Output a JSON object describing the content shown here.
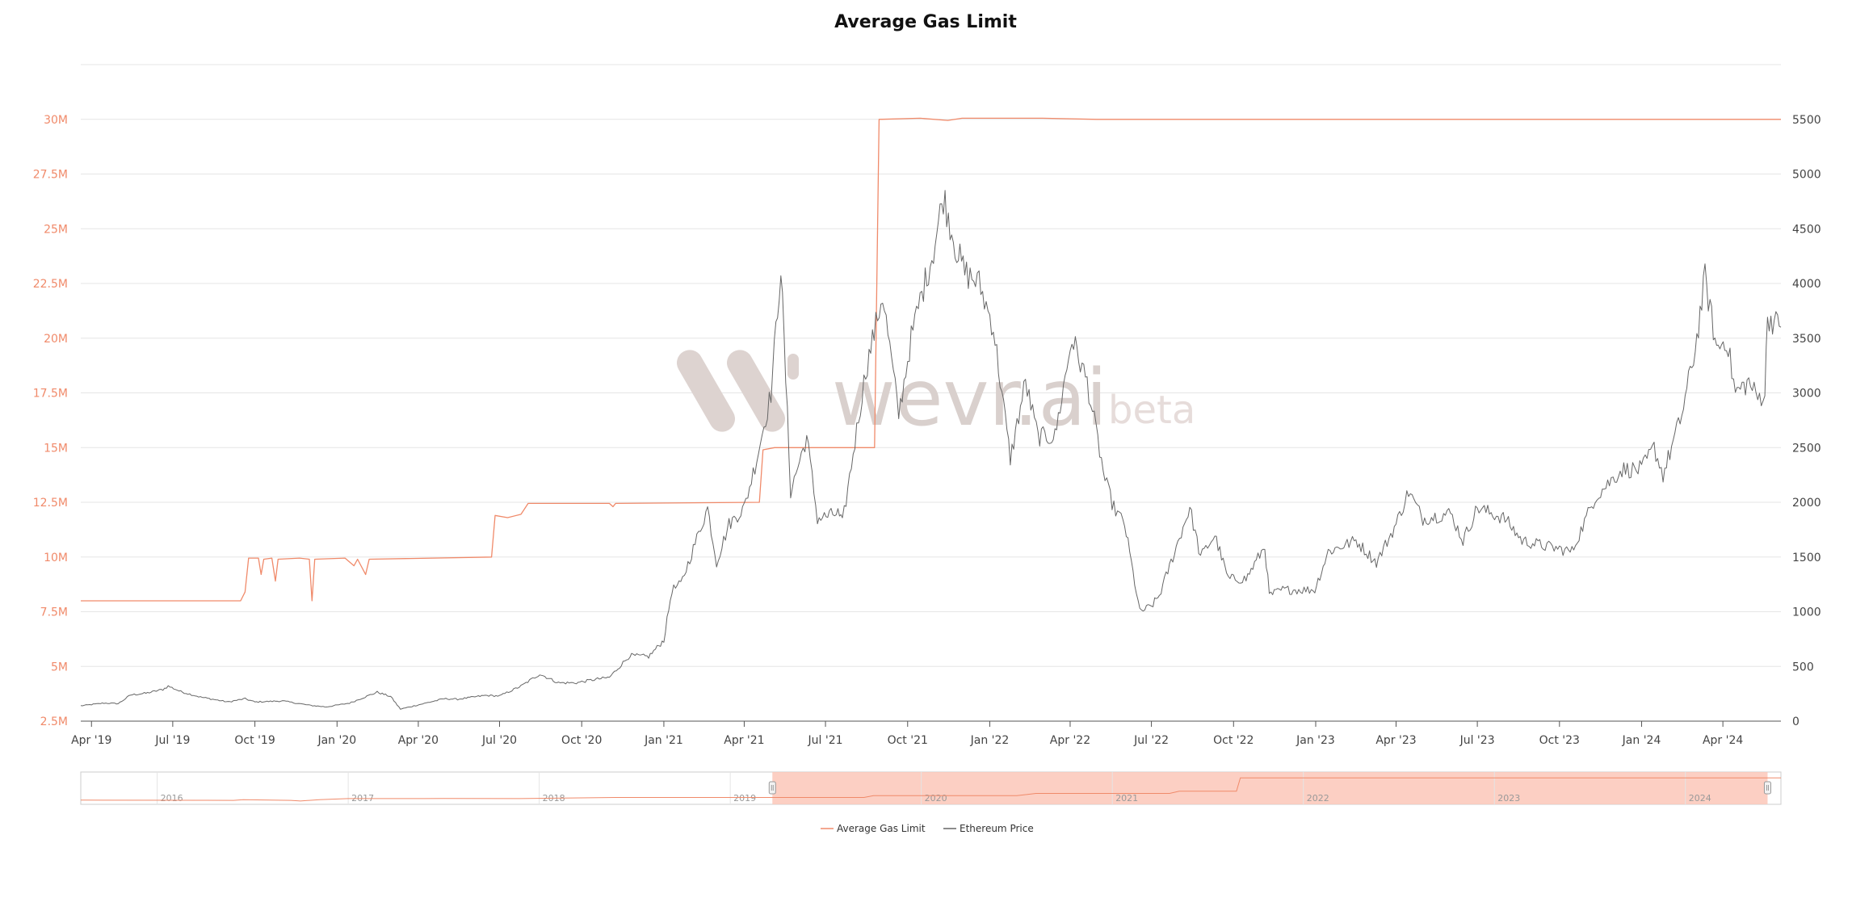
{
  "colors": {
    "gas": "#f08a6a",
    "price": "#666666",
    "grid": "#e6e6e6",
    "navigator_fill": "#fcc7b8",
    "watermark": "#d9d0cd"
  },
  "watermark": {
    "brand": "wevr.ai",
    "suffix": "beta",
    "icon": "wevr-logo-icon"
  },
  "legend": [
    {
      "label": "Average Gas Limit",
      "color": "#f08a6a"
    },
    {
      "label": "Ethereum Price",
      "color": "#666666"
    }
  ],
  "navigator": {
    "range_years": [
      2015.6,
      2024.5
    ],
    "selected_range": [
      "2019-03-20",
      "2024-06-05"
    ],
    "year_labels": [
      "2016",
      "2017",
      "2018",
      "2019",
      "2020",
      "2021",
      "2022",
      "2023",
      "2024"
    ]
  },
  "chart_data": {
    "type": "line",
    "title": "Average Gas Limit",
    "x_range": [
      "2019-03-20",
      "2024-06-05"
    ],
    "x_ticks": [
      "Apr '19",
      "Jul '19",
      "Oct '19",
      "Jan '20",
      "Apr '20",
      "Jul '20",
      "Oct '20",
      "Jan '21",
      "Apr '21",
      "Jul '21",
      "Oct '21",
      "Jan '22",
      "Apr '22",
      "Jul '22",
      "Oct '22",
      "Jan '23",
      "Apr '23",
      "Jul '23",
      "Oct '23",
      "Jan '24",
      "Apr '24"
    ],
    "x_tick_dates": [
      "2019-04-01",
      "2019-07-01",
      "2019-10-01",
      "2020-01-01",
      "2020-04-01",
      "2020-07-01",
      "2020-10-01",
      "2021-01-01",
      "2021-04-01",
      "2021-07-01",
      "2021-10-01",
      "2022-01-01",
      "2022-04-01",
      "2022-07-01",
      "2022-10-01",
      "2023-01-01",
      "2023-04-01",
      "2023-07-01",
      "2023-10-01",
      "2024-01-01",
      "2024-04-01"
    ],
    "y_left": {
      "min": 2500000,
      "max": 32500000,
      "ticks": [
        2500000,
        5000000,
        7500000,
        10000000,
        12500000,
        15000000,
        17500000,
        20000000,
        22500000,
        25000000,
        27500000,
        30000000
      ],
      "tick_labels": [
        "2.5M",
        "5M",
        "7.5M",
        "10M",
        "12.5M",
        "15M",
        "17.5M",
        "20M",
        "22.5M",
        "25M",
        "27.5M",
        "30M"
      ]
    },
    "y_right": {
      "min": 0,
      "max": 6000,
      "ticks": [
        0,
        500,
        1000,
        1500,
        2000,
        2500,
        3000,
        3500,
        4000,
        4500,
        5000,
        5500
      ],
      "tick_labels": [
        "0",
        "500",
        "1000",
        "1500",
        "2000",
        "2500",
        "3000",
        "3500",
        "4000",
        "4500",
        "5000",
        "5500"
      ]
    },
    "grid": true,
    "legend_position": "bottom-center",
    "series": [
      {
        "name": "Average Gas Limit",
        "axis": "left",
        "color": "#f08a6a",
        "points": [
          [
            "2019-03-20",
            8000000
          ],
          [
            "2019-09-15",
            8000000
          ],
          [
            "2019-09-20",
            8400000
          ],
          [
            "2019-09-24",
            9950000
          ],
          [
            "2019-10-05",
            9950000
          ],
          [
            "2019-10-08",
            9200000
          ],
          [
            "2019-10-11",
            9900000
          ],
          [
            "2019-10-20",
            9950000
          ],
          [
            "2019-10-24",
            8900000
          ],
          [
            "2019-10-27",
            9900000
          ],
          [
            "2019-11-20",
            9950000
          ],
          [
            "2019-12-01",
            9900000
          ],
          [
            "2019-12-04",
            8000000
          ],
          [
            "2019-12-07",
            9900000
          ],
          [
            "2020-01-10",
            9950000
          ],
          [
            "2020-01-20",
            9600000
          ],
          [
            "2020-01-24",
            9900000
          ],
          [
            "2020-02-02",
            9200000
          ],
          [
            "2020-02-06",
            9900000
          ],
          [
            "2020-06-22",
            10000000
          ],
          [
            "2020-06-26",
            11900000
          ],
          [
            "2020-07-10",
            11800000
          ],
          [
            "2020-07-25",
            11950000
          ],
          [
            "2020-08-02",
            12450000
          ],
          [
            "2020-11-01",
            12450000
          ],
          [
            "2020-11-05",
            12300000
          ],
          [
            "2020-11-08",
            12450000
          ],
          [
            "2021-04-18",
            12500000
          ],
          [
            "2021-04-22",
            14900000
          ],
          [
            "2021-05-05",
            15000000
          ],
          [
            "2021-08-25",
            15000000
          ],
          [
            "2021-08-30",
            30000000
          ],
          [
            "2021-10-15",
            30050000
          ],
          [
            "2021-11-15",
            29950000
          ],
          [
            "2021-12-01",
            30050000
          ],
          [
            "2022-03-01",
            30050000
          ],
          [
            "2022-05-01",
            30000000
          ],
          [
            "2024-06-05",
            30000000
          ]
        ]
      },
      {
        "name": "Ethereum Price",
        "axis": "right",
        "color": "#666666",
        "points": [
          [
            "2019-03-20",
            140
          ],
          [
            "2019-04-15",
            165
          ],
          [
            "2019-05-01",
            160
          ],
          [
            "2019-05-15",
            240
          ],
          [
            "2019-06-01",
            255
          ],
          [
            "2019-06-20",
            290
          ],
          [
            "2019-06-26",
            320
          ],
          [
            "2019-07-10",
            270
          ],
          [
            "2019-08-01",
            220
          ],
          [
            "2019-09-01",
            175
          ],
          [
            "2019-09-20",
            205
          ],
          [
            "2019-10-01",
            175
          ],
          [
            "2019-11-01",
            185
          ],
          [
            "2019-12-01",
            145
          ],
          [
            "2019-12-20",
            130
          ],
          [
            "2020-01-15",
            165
          ],
          [
            "2020-02-15",
            265
          ],
          [
            "2020-03-01",
            225
          ],
          [
            "2020-03-12",
            110
          ],
          [
            "2020-03-25",
            135
          ],
          [
            "2020-04-30",
            205
          ],
          [
            "2020-05-15",
            200
          ],
          [
            "2020-06-15",
            235
          ],
          [
            "2020-07-01",
            230
          ],
          [
            "2020-07-25",
            320
          ],
          [
            "2020-08-15",
            430
          ],
          [
            "2020-09-05",
            350
          ],
          [
            "2020-09-25",
            350
          ],
          [
            "2020-10-15",
            380
          ],
          [
            "2020-11-01",
            400
          ],
          [
            "2020-11-24",
            600
          ],
          [
            "2020-12-15",
            590
          ],
          [
            "2021-01-01",
            740
          ],
          [
            "2021-01-10",
            1200
          ],
          [
            "2021-01-20",
            1250
          ],
          [
            "2021-02-19",
            1950
          ],
          [
            "2021-03-01",
            1450
          ],
          [
            "2021-03-15",
            1800
          ],
          [
            "2021-04-01",
            1950
          ],
          [
            "2021-04-15",
            2400
          ],
          [
            "2021-05-01",
            3000
          ],
          [
            "2021-05-12",
            4150
          ],
          [
            "2021-05-23",
            2100
          ],
          [
            "2021-06-10",
            2600
          ],
          [
            "2021-06-22",
            1850
          ],
          [
            "2021-07-15",
            1900
          ],
          [
            "2021-07-20",
            1800
          ],
          [
            "2021-08-15",
            3200
          ],
          [
            "2021-09-03",
            3900
          ],
          [
            "2021-09-21",
            2800
          ],
          [
            "2021-10-05",
            3500
          ],
          [
            "2021-10-15",
            3850
          ],
          [
            "2021-10-30",
            4300
          ],
          [
            "2021-11-10",
            4800
          ],
          [
            "2021-11-25",
            4300
          ],
          [
            "2021-12-04",
            4100
          ],
          [
            "2021-12-20",
            4000
          ],
          [
            "2022-01-05",
            3600
          ],
          [
            "2022-01-24",
            2400
          ],
          [
            "2022-02-10",
            3100
          ],
          [
            "2022-02-24",
            2600
          ],
          [
            "2022-03-15",
            2600
          ],
          [
            "2022-04-03",
            3500
          ],
          [
            "2022-04-20",
            3100
          ],
          [
            "2022-05-10",
            2200
          ],
          [
            "2022-05-20",
            1950
          ],
          [
            "2022-06-01",
            1800
          ],
          [
            "2022-06-18",
            1000
          ],
          [
            "2022-07-01",
            1050
          ],
          [
            "2022-07-10",
            1150
          ],
          [
            "2022-07-25",
            1500
          ],
          [
            "2022-08-13",
            1950
          ],
          [
            "2022-08-25",
            1500
          ],
          [
            "2022-09-10",
            1700
          ],
          [
            "2022-09-25",
            1300
          ],
          [
            "2022-10-15",
            1300
          ],
          [
            "2022-11-05",
            1600
          ],
          [
            "2022-11-10",
            1150
          ],
          [
            "2022-11-25",
            1200
          ],
          [
            "2022-12-31",
            1200
          ],
          [
            "2023-01-15",
            1550
          ],
          [
            "2023-02-15",
            1650
          ],
          [
            "2023-03-10",
            1450
          ],
          [
            "2023-04-01",
            1800
          ],
          [
            "2023-04-15",
            2100
          ],
          [
            "2023-05-01",
            1850
          ],
          [
            "2023-06-01",
            1900
          ],
          [
            "2023-06-15",
            1650
          ],
          [
            "2023-07-01",
            1950
          ],
          [
            "2023-08-01",
            1850
          ],
          [
            "2023-08-20",
            1650
          ],
          [
            "2023-09-15",
            1600
          ],
          [
            "2023-10-15",
            1550
          ],
          [
            "2023-11-10",
            2050
          ],
          [
            "2023-12-10",
            2300
          ],
          [
            "2024-01-01",
            2300
          ],
          [
            "2024-01-15",
            2500
          ],
          [
            "2024-01-25",
            2250
          ],
          [
            "2024-02-15",
            2800
          ],
          [
            "2024-03-01",
            3400
          ],
          [
            "2024-03-12",
            4050
          ],
          [
            "2024-03-25",
            3400
          ],
          [
            "2024-04-05",
            3500
          ],
          [
            "2024-04-15",
            3000
          ],
          [
            "2024-04-30",
            3100
          ],
          [
            "2024-05-10",
            2950
          ],
          [
            "2024-05-18",
            3000
          ],
          [
            "2024-05-21",
            3700
          ],
          [
            "2024-06-05",
            3600
          ]
        ]
      }
    ]
  }
}
